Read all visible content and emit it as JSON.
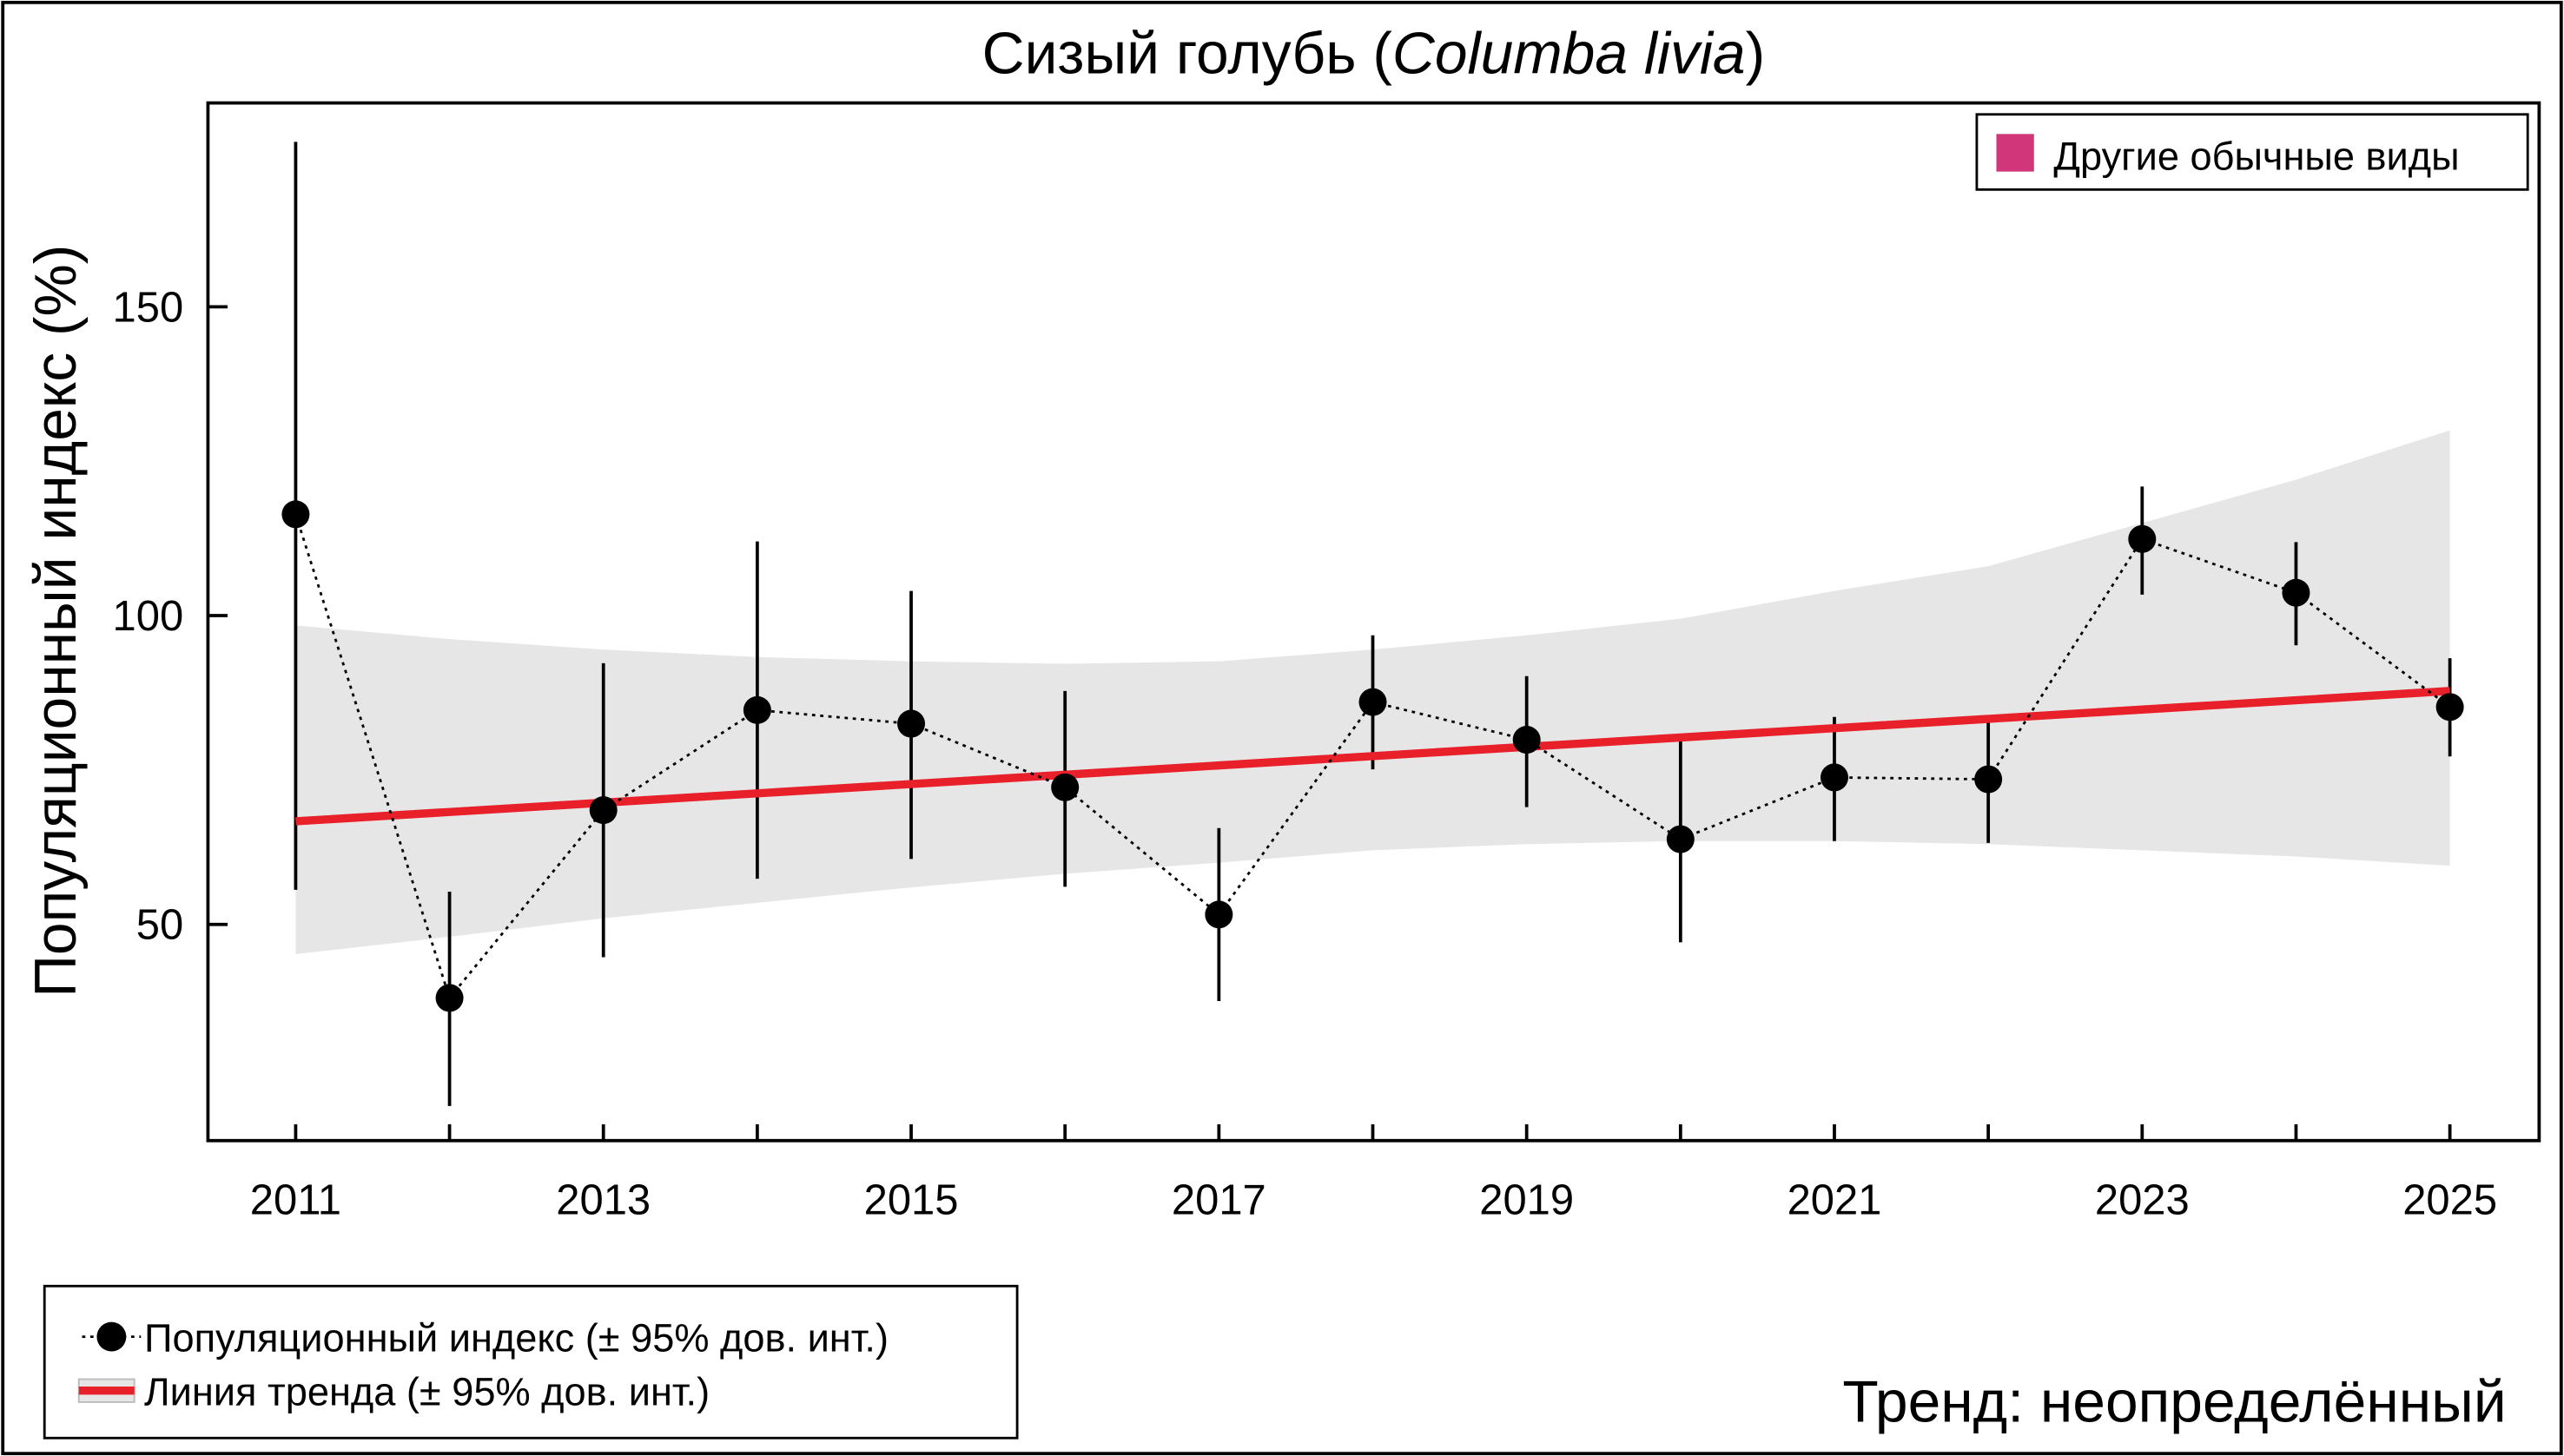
{
  "chart_data": {
    "type": "line",
    "title_main": "Сизый голубь (",
    "title_italic": "Columba livia",
    "title_end": ")",
    "ylabel": "Популяционный индекс (%)",
    "xlabel": "",
    "x": [
      2011,
      2012,
      2013,
      2014,
      2015,
      2016,
      2017,
      2018,
      2019,
      2020,
      2021,
      2022,
      2023,
      2024,
      2025
    ],
    "x_tick_labels": [
      "2011",
      "2013",
      "2015",
      "2017",
      "2019",
      "2021",
      "2023",
      "2025"
    ],
    "y_ticks": [
      50,
      100,
      150
    ],
    "ylim": [
      15,
      183
    ],
    "xlim": [
      2010.43,
      2025.58
    ],
    "grid": false,
    "series": [
      {
        "name": "Популяционный индекс (± 95% дов. инт.)",
        "values": [
          116.4,
          38.1,
          68.5,
          84.7,
          82.5,
          72.2,
          51.6,
          86.0,
          79.9,
          63.8,
          73.8,
          73.5,
          112.4,
          103.7,
          85.2
        ],
        "ci_upper": [
          176.7,
          55.3,
          92.3,
          112.0,
          104.0,
          87.8,
          65.6,
          96.8,
          90.2,
          80.2,
          83.6,
          83.6,
          120.9,
          111.9,
          93.1
        ],
        "ci_lower": [
          55.6,
          20.6,
          44.7,
          57.4,
          60.6,
          56.1,
          37.6,
          75.1,
          69.0,
          47.1,
          63.5,
          63.2,
          103.4,
          95.2,
          77.2
        ],
        "color": "#000000"
      },
      {
        "name": "Линия тренда (± 95% дов. инт.)",
        "trend_start": 66.7,
        "trend_end": 87.8,
        "band_upper": [
          98.4,
          96.2,
          94.5,
          93.3,
          92.6,
          92.2,
          92.6,
          94.5,
          96.8,
          99.5,
          104,
          108,
          115,
          122,
          130
        ],
        "band_lower": [
          45.2,
          48,
          51,
          53.5,
          56,
          58.2,
          60,
          62,
          63,
          63.5,
          63.5,
          63,
          62,
          61,
          59.5
        ],
        "color": "#e8202a",
        "band_color": "#e6e6e6"
      }
    ],
    "legend_top_right": {
      "label": "Другие обычные виды",
      "color": "#d1357a"
    },
    "legend_bottom_left": [
      "Популяционный индекс (± 95% дов. инт.)",
      "Линия тренда (± 95% дов. инт.)"
    ],
    "trend_text": "Тренд: неопределённый"
  }
}
